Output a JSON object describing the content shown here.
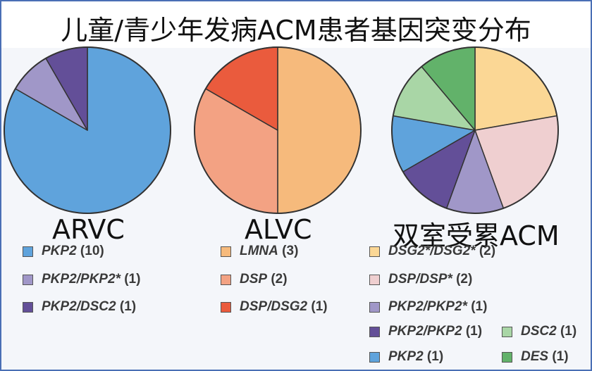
{
  "title": "儿童/青少年发病ACM患者基因突变分布",
  "chart_data": [
    {
      "type": "pie",
      "label": "ARVC",
      "slices": [
        {
          "gene": "PKP2",
          "count": "(10)",
          "value": 10,
          "color": "#5fa3dc"
        },
        {
          "gene": "PKP2/PKP2*",
          "count": "(1)",
          "value": 1,
          "color": "#a097c8"
        },
        {
          "gene": "PKP2/DSC2",
          "count": "(1)",
          "value": 1,
          "color": "#634f98"
        }
      ]
    },
    {
      "type": "pie",
      "label": "ALVC",
      "slices": [
        {
          "gene": "LMNA",
          "count": "(3)",
          "value": 3,
          "color": "#f6ba7c"
        },
        {
          "gene": "DSP",
          "count": "(2)",
          "value": 2,
          "color": "#f3a283"
        },
        {
          "gene": "DSP/DSG2",
          "count": "(1)",
          "value": 1,
          "color": "#ea5b3d"
        }
      ]
    },
    {
      "type": "pie",
      "label": "双室受累ACM",
      "slices": [
        {
          "gene": "DSG2*/DSG2*",
          "count": "(2)",
          "value": 2,
          "color": "#fbd795"
        },
        {
          "gene": "DSP/DSP*",
          "count": "(2)",
          "value": 2,
          "color": "#efcfd0"
        },
        {
          "gene": "PKP2/PKP2*",
          "count": "(1)",
          "value": 1,
          "color": "#a097c8"
        },
        {
          "gene": "PKP2/PKP2",
          "count": "(1)",
          "value": 1,
          "color": "#634f98"
        },
        {
          "gene": "PKP2",
          "count": "(1)",
          "value": 1,
          "color": "#5fa3dc"
        },
        {
          "gene": "DSC2",
          "count": "(1)",
          "value": 1,
          "color": "#a9d6a6"
        },
        {
          "gene": "DES",
          "count": "(1)",
          "value": 1,
          "color": "#62b26a"
        }
      ]
    }
  ]
}
